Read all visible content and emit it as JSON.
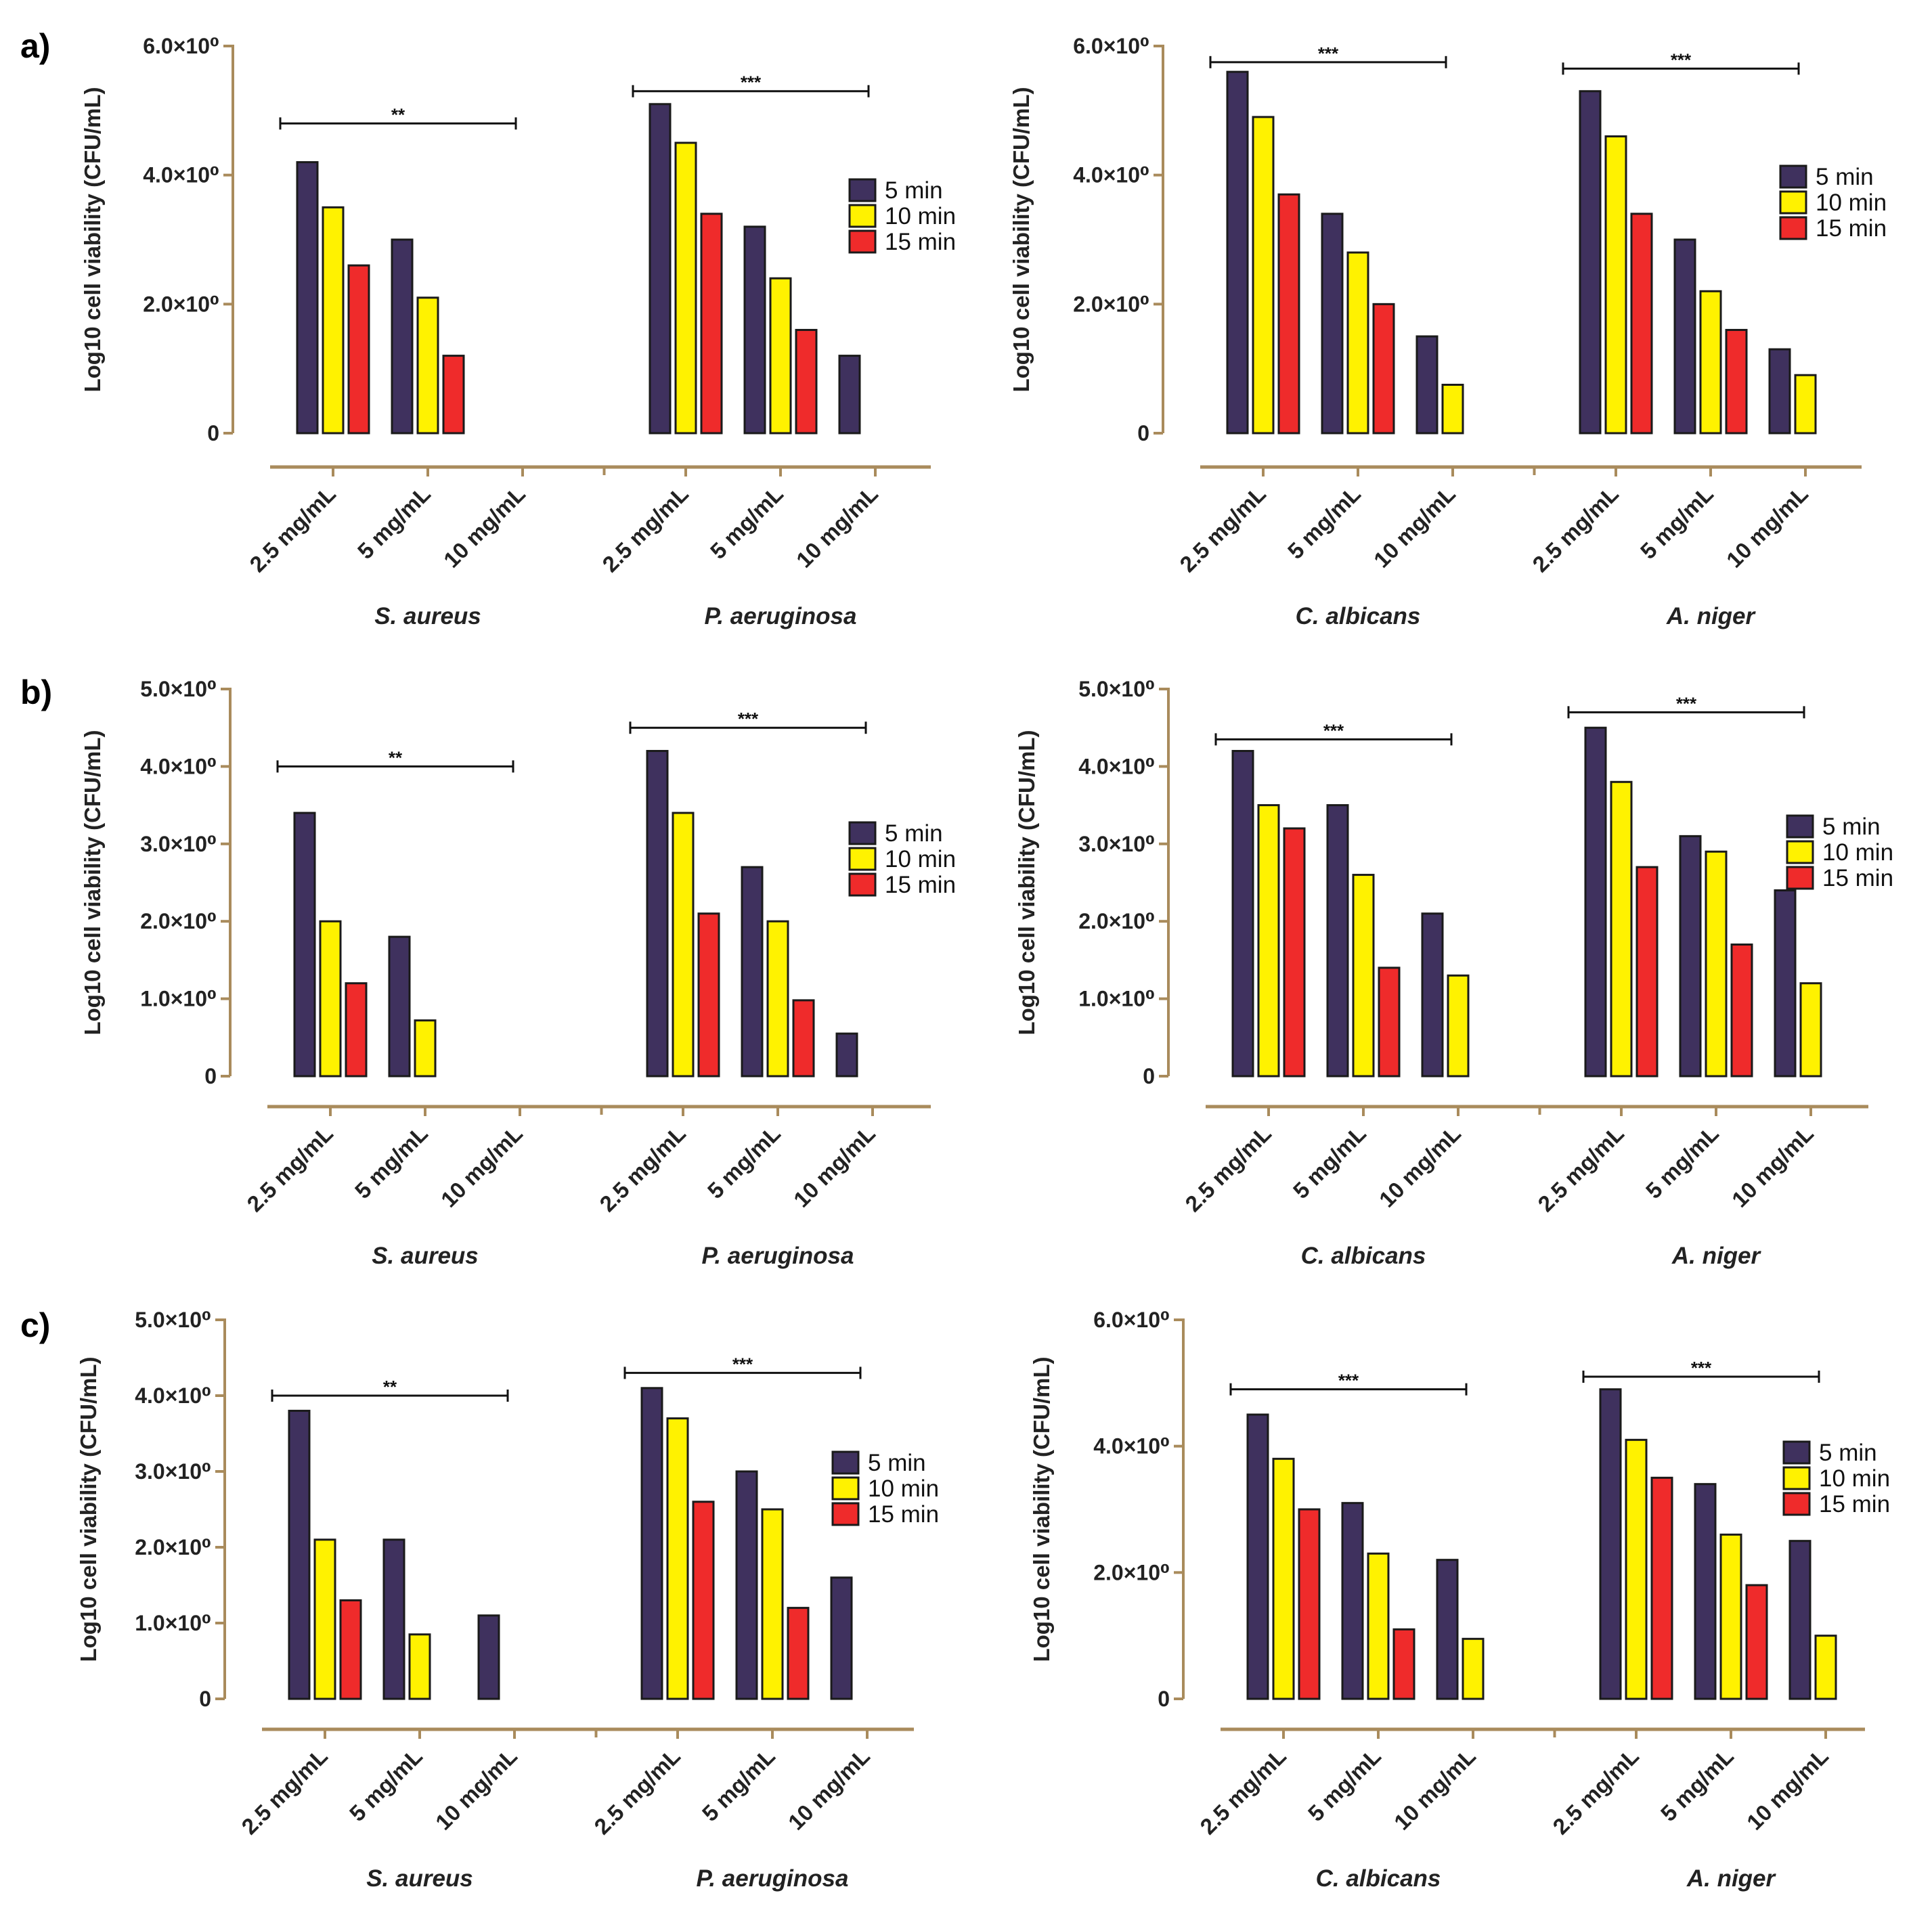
{
  "figure": {
    "row_labels": [
      "a)",
      "b)",
      "c)"
    ]
  },
  "colors": {
    "axis": "#a98b5c",
    "bar_stroke": "#1a1a1a",
    "series": [
      "#3f315e",
      "#fff200",
      "#ef2b2b"
    ],
    "text": "#222222"
  },
  "chart_data": [
    {
      "type": "bar",
      "id": "a-bacteria",
      "row": "a)",
      "ylabel": "Log10 cell viability (CFU/mL)",
      "ylim": [
        0,
        6
      ],
      "yticks": [
        {
          "v": 0,
          "label": "0"
        },
        {
          "v": 2,
          "label": "2.0×10⁰"
        },
        {
          "v": 4,
          "label": "4.0×10⁰"
        },
        {
          "v": 6,
          "label": "6.0×10⁰"
        }
      ],
      "series_names": [
        "5 min",
        "10 min",
        "15 min"
      ],
      "groups": [
        {
          "name": "S. aureus",
          "categories": [
            "2.5 mg/mL",
            "5 mg/mL",
            "10 mg/mL"
          ],
          "values": [
            [
              4.2,
              3.5,
              2.6
            ],
            [
              3.0,
              2.1,
              1.2
            ],
            [
              null,
              null,
              null
            ]
          ],
          "significance": {
            "label": "**",
            "level": 4.8
          }
        },
        {
          "name": "P. aeruginosa",
          "categories": [
            "2.5 mg/mL",
            "5 mg/mL",
            "10 mg/mL"
          ],
          "values": [
            [
              5.1,
              4.5,
              3.4
            ],
            [
              3.2,
              2.4,
              1.6
            ],
            [
              1.2,
              null,
              null
            ]
          ],
          "significance": {
            "label": "***",
            "level": 5.3
          }
        }
      ]
    },
    {
      "type": "bar",
      "id": "a-fungi",
      "row": "a)",
      "ylabel": "Log10 cell viability (CFU/mL)",
      "ylim": [
        0,
        6
      ],
      "yticks": [
        {
          "v": 0,
          "label": "0"
        },
        {
          "v": 2,
          "label": "2.0×10⁰"
        },
        {
          "v": 4,
          "label": "4.0×10⁰"
        },
        {
          "v": 6,
          "label": "6.0×10⁰"
        }
      ],
      "series_names": [
        "5 min",
        "10 min",
        "15 min"
      ],
      "groups": [
        {
          "name": "C. albicans",
          "categories": [
            "2.5 mg/mL",
            "5 mg/mL",
            "10 mg/mL"
          ],
          "values": [
            [
              5.6,
              4.9,
              3.7
            ],
            [
              3.4,
              2.8,
              2.0
            ],
            [
              1.5,
              0.75,
              null
            ]
          ],
          "significance": {
            "label": "***",
            "level": 5.75
          }
        },
        {
          "name": "A. niger",
          "categories": [
            "2.5 mg/mL",
            "5 mg/mL",
            "10 mg/mL"
          ],
          "values": [
            [
              5.3,
              4.6,
              3.4
            ],
            [
              3.0,
              2.2,
              1.6
            ],
            [
              1.3,
              0.9,
              null
            ]
          ],
          "significance": {
            "label": "***",
            "level": 5.65
          }
        }
      ]
    },
    {
      "type": "bar",
      "id": "b-bacteria",
      "row": "b)",
      "ylabel": "Log10 cell viability (CFU/mL)",
      "ylim": [
        0,
        5
      ],
      "yticks": [
        {
          "v": 0,
          "label": "0"
        },
        {
          "v": 1,
          "label": "1.0×10⁰"
        },
        {
          "v": 2,
          "label": "2.0×10⁰"
        },
        {
          "v": 3,
          "label": "3.0×10⁰"
        },
        {
          "v": 4,
          "label": "4.0×10⁰"
        },
        {
          "v": 5,
          "label": "5.0×10⁰"
        }
      ],
      "series_names": [
        "5 min",
        "10 min",
        "15 min"
      ],
      "groups": [
        {
          "name": "S. aureus",
          "categories": [
            "2.5 mg/mL",
            "5 mg/mL",
            "10 mg/mL"
          ],
          "values": [
            [
              3.4,
              2.0,
              1.2
            ],
            [
              1.8,
              0.72,
              null
            ],
            [
              null,
              null,
              null
            ]
          ],
          "significance": {
            "label": "**",
            "level": 4.0
          }
        },
        {
          "name": "P. aeruginosa",
          "categories": [
            "2.5 mg/mL",
            "5 mg/mL",
            "10 mg/mL"
          ],
          "values": [
            [
              4.2,
              3.4,
              2.1
            ],
            [
              2.7,
              2.0,
              0.98
            ],
            [
              0.55,
              null,
              null
            ]
          ],
          "significance": {
            "label": "***",
            "level": 4.5
          }
        }
      ]
    },
    {
      "type": "bar",
      "id": "b-fungi",
      "row": "b)",
      "ylabel": "Log10 cell viability (CFU/mL)",
      "ylim": [
        0,
        5
      ],
      "yticks": [
        {
          "v": 0,
          "label": "0"
        },
        {
          "v": 1,
          "label": "1.0×10⁰"
        },
        {
          "v": 2,
          "label": "2.0×10⁰"
        },
        {
          "v": 3,
          "label": "3.0×10⁰"
        },
        {
          "v": 4,
          "label": "4.0×10⁰"
        },
        {
          "v": 5,
          "label": "5.0×10⁰"
        }
      ],
      "series_names": [
        "5 min",
        "10 min",
        "15 min"
      ],
      "groups": [
        {
          "name": "C. albicans",
          "categories": [
            "2.5 mg/mL",
            "5 mg/mL",
            "10 mg/mL"
          ],
          "values": [
            [
              4.2,
              3.5,
              3.2
            ],
            [
              3.5,
              2.6,
              1.4
            ],
            [
              2.1,
              1.3,
              null
            ]
          ],
          "significance": {
            "label": "***",
            "level": 4.35
          }
        },
        {
          "name": "A. niger",
          "categories": [
            "2.5 mg/mL",
            "5 mg/mL",
            "10 mg/mL"
          ],
          "values": [
            [
              4.5,
              3.8,
              2.7
            ],
            [
              3.1,
              2.9,
              1.7
            ],
            [
              2.4,
              1.2,
              null
            ]
          ],
          "significance": {
            "label": "***",
            "level": 4.7
          }
        }
      ]
    },
    {
      "type": "bar",
      "id": "c-bacteria",
      "row": "c)",
      "ylabel": "Log10 cell viability (CFU/mL)",
      "ylim": [
        0,
        5
      ],
      "yticks": [
        {
          "v": 0,
          "label": "0"
        },
        {
          "v": 1,
          "label": "1.0×10⁰"
        },
        {
          "v": 2,
          "label": "2.0×10⁰"
        },
        {
          "v": 3,
          "label": "3.0×10⁰"
        },
        {
          "v": 4,
          "label": "4.0×10⁰"
        },
        {
          "v": 5,
          "label": "5.0×10⁰"
        }
      ],
      "series_names": [
        "5 min",
        "10 min",
        "15 min"
      ],
      "groups": [
        {
          "name": "S. aureus",
          "categories": [
            "2.5 mg/mL",
            "5 mg/mL",
            "10 mg/mL"
          ],
          "values": [
            [
              3.8,
              2.1,
              1.3
            ],
            [
              2.1,
              0.85,
              null
            ],
            [
              1.1,
              null,
              null
            ]
          ],
          "significance": {
            "label": "**",
            "level": 4.0
          }
        },
        {
          "name": "P. aeruginosa",
          "categories": [
            "2.5 mg/mL",
            "5 mg/mL",
            "10 mg/mL"
          ],
          "values": [
            [
              4.1,
              3.7,
              2.6
            ],
            [
              3.0,
              2.5,
              1.2
            ],
            [
              1.6,
              null,
              null
            ]
          ],
          "significance": {
            "label": "***",
            "level": 4.3
          }
        }
      ]
    },
    {
      "type": "bar",
      "id": "c-fungi",
      "row": "c)",
      "ylabel": "Log10 cell viability (CFU/mL)",
      "ylim": [
        0,
        6
      ],
      "yticks": [
        {
          "v": 0,
          "label": "0"
        },
        {
          "v": 2,
          "label": "2.0×10⁰"
        },
        {
          "v": 4,
          "label": "4.0×10⁰"
        },
        {
          "v": 6,
          "label": "6.0×10⁰"
        }
      ],
      "series_names": [
        "5 min",
        "10 min",
        "15 min"
      ],
      "groups": [
        {
          "name": "C. albicans",
          "categories": [
            "2.5 mg/mL",
            "5 mg/mL",
            "10 mg/mL"
          ],
          "values": [
            [
              4.5,
              3.8,
              3.0
            ],
            [
              3.1,
              2.3,
              1.1
            ],
            [
              2.2,
              0.95,
              null
            ]
          ],
          "significance": {
            "label": "***",
            "level": 4.9
          }
        },
        {
          "name": "A. niger",
          "categories": [
            "2.5 mg/mL",
            "5 mg/mL",
            "10 mg/mL"
          ],
          "values": [
            [
              4.9,
              4.1,
              3.5
            ],
            [
              3.4,
              2.6,
              1.8
            ],
            [
              2.5,
              1.0,
              null
            ]
          ],
          "significance": {
            "label": "***",
            "level": 5.1
          }
        }
      ]
    }
  ]
}
